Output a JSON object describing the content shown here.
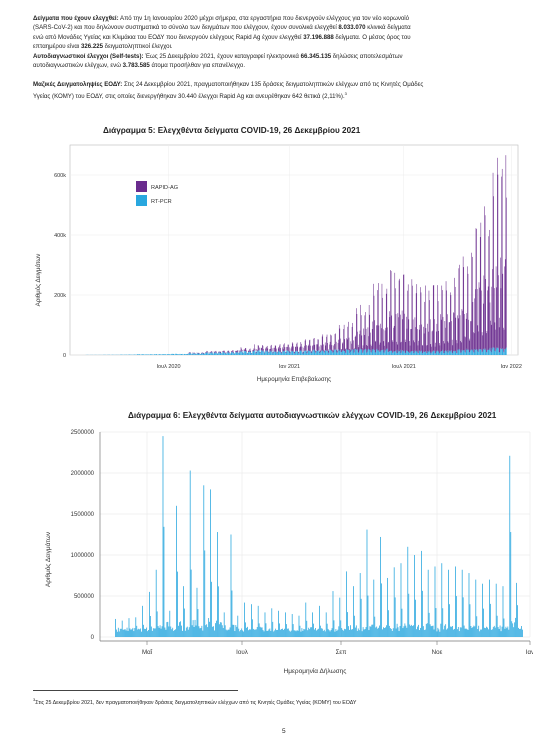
{
  "text": {
    "p1": {
      "label": "Δείγματα που έχουν ελεγχθεί:",
      "l1": " Από την 1η Ιανουαρίου 2020 μέχρι σήμερα, στα εργαστήρια που διενεργούν ελέγχους για τον νέο κορωνοϊό",
      "l2": "(SARS-CoV-2) και που δηλώνουν συστηματικά το σύνολο των δειγμάτων που ελέγχουν, έχουν συνολικά ελεγχθεί ",
      "l2b": "8.033.070",
      "l2c": " κλινικά δείγματα",
      "l3": "ενώ από Μονάδες Υγείας και Κλιμάκια του ΕΟΔΥ που διενεργούν ελέγχους Rapid Ag έχουν ελεγχθεί ",
      "l3b": "37.196.888",
      "l3c": " δείγματα.  Ο μέσος όρος του",
      "l4": "επταημέρου είναι ",
      "l4b": "326.225",
      "l4c": " δειγματοληπτικοί έλεγχοι."
    },
    "p2": {
      "label": "Αυτοδιαγνωστικοί έλεγχοι (Self-tests):",
      "l1": " Έως 25 Δεκεμβρίου 2021, έχουν καταγραφεί ηλεκτρονικά ",
      "l1b": "66.345.135",
      "l1c": " δηλώσεις αποτελεσμάτων",
      "l2": "αυτοδιαγνωστικών ελέγχων, ενώ ",
      "l2b": "3.783.585",
      "l2c": " άτομα προσήλθαν για επανέλεγχο."
    },
    "p3": {
      "label": "Μαζικές Δειγματοληψίες ΕΟΔΥ:",
      "l1": " Στις 24 Δεκεμβρίου 2021, πραγματοποιήθηκαν 135 δράσεις δειγματοληπτικών ελέγχων από τις Κινητές Ομάδες",
      "l2": "Υγείας (ΚΟΜΥ) του ΕΟΔΥ, στις οποίες διενεργήθηκαν 30.440 έλεγχοι Rapid Ag και ανευρέθηκαν 642 θετικά (2,11%).",
      "sup": "3"
    },
    "footnote_mark": "3",
    "footnote": "Στις 25 Δεκεμβρίου 2021, δεν πραγματοποιήθηκαν δράσεις δειγματοληπτικών ελέγχων από τις Κινητές Ομάδες Υγείας (ΚΟΜΥ) του ΕΟΔΥ",
    "page_number": "5"
  },
  "chart_data": [
    {
      "type": "bar",
      "title": "Διάγραμμα 5: Ελεγχθέντα δείγματα COVID-19, 26 Δεκεμβρίου 2021",
      "xlabel": "Ημερομηνία Επιβεβαίωσης",
      "ylabel": "Αριθμός Δειγμάτων",
      "x_tick_labels": [
        "Ιουλ 2020",
        "Ιαν 2021",
        "Ιουλ 2021",
        "Ιαν 2022"
      ],
      "y_tick_labels": [
        "0",
        "200k",
        "400k",
        "600k"
      ],
      "ylim": [
        0,
        700000
      ],
      "stacked": true,
      "legend_position": "top-left",
      "series": [
        {
          "name": "RAPID-AG",
          "color": "#6a2c8e",
          "monthly_typical": [
            0,
            0,
            0,
            0,
            0,
            0,
            2000,
            3000,
            4000,
            6000,
            10000,
            14000,
            17000,
            23000,
            28000,
            42000,
            75000,
            110000,
            135000,
            125000,
            110000,
            130000,
            160000,
            250000,
            330000
          ],
          "monthly_peak": [
            0,
            0,
            0,
            0,
            0,
            0,
            3000,
            5000,
            7000,
            12000,
            20000,
            26000,
            30000,
            45000,
            60000,
            95000,
            150000,
            230000,
            270000,
            240000,
            220000,
            250000,
            330000,
            480000,
            660000
          ]
        },
        {
          "name": "RT-PCR",
          "color": "#29a7df",
          "monthly_typical": [
            500,
            800,
            1500,
            2500,
            3000,
            4000,
            6000,
            9000,
            10000,
            13000,
            15000,
            14000,
            14000,
            16000,
            17000,
            18000,
            20000,
            20000,
            16000,
            14000,
            14000,
            16000,
            19000,
            22000,
            25000
          ],
          "monthly_peak": [
            800,
            1200,
            2500,
            4000,
            5000,
            7000,
            10000,
            14000,
            16000,
            20000,
            24000,
            22000,
            22000,
            24000,
            26000,
            28000,
            30000,
            28000,
            24000,
            22000,
            22000,
            24000,
            28000,
            30000,
            33000
          ]
        }
      ]
    },
    {
      "type": "bar",
      "title": "Διάγραμμα 6: Ελεγχθέντα δείγματα αυτοδιαγνωστικών ελέγχων COVID-19, 26 Δεκεμβρίου 2021",
      "xlabel": "Ημερομηνία Δήλωσης",
      "ylabel": "Αριθμός Δειγμάτων",
      "x_tick_labels": [
        "Μαΐ",
        "Ιουλ",
        "Σεπ",
        "Νοε",
        "Ιαν"
      ],
      "y_tick_labels": [
        "0",
        "500000",
        "1000000",
        "1500000",
        "2000000",
        "2500000"
      ],
      "ylim": [
        0,
        2500000
      ],
      "color": "#29a7df",
      "weekly_peaks": [
        220000,
        200000,
        230000,
        240000,
        380000,
        550000,
        820000,
        2450000,
        320000,
        1600000,
        620000,
        2030000,
        600000,
        1850000,
        1800000,
        1280000,
        300000,
        1250000,
        260000,
        420000,
        400000,
        380000,
        300000,
        350000,
        320000,
        300000,
        280000,
        260000,
        420000,
        300000,
        380000,
        300000,
        560000,
        480000,
        800000,
        620000,
        780000,
        1310000,
        700000,
        1220000,
        720000,
        850000,
        900000,
        1100000,
        1000000,
        1050000,
        820000,
        860000,
        900000,
        820000,
        860000,
        820000,
        780000,
        700000,
        650000,
        700000,
        650000,
        620000,
        2210000,
        660000
      ],
      "baseline_low": 60000
    }
  ]
}
